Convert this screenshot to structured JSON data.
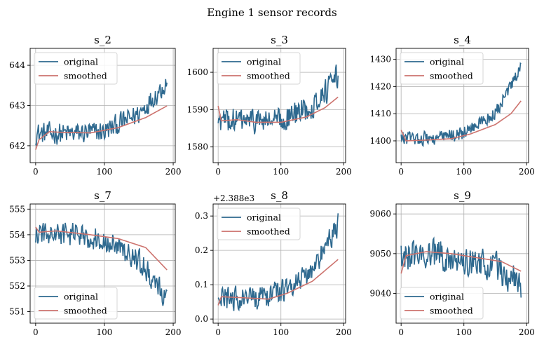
{
  "figure": {
    "title": "Engine 1 sensor records"
  },
  "colors": {
    "original": "#2e698f",
    "smoothed": "#cd736e",
    "grid": "#b0b0b0",
    "axes": "#000000"
  },
  "chart_data": [
    {
      "type": "line",
      "title": "s_2",
      "xlim": [
        -8,
        203
      ],
      "ylim": [
        641.58,
        644.42
      ],
      "xticks": [
        0,
        100,
        200
      ],
      "xtick_labels": [
        "0",
        "100",
        "200"
      ],
      "yticks": [
        642,
        643,
        644
      ],
      "ytick_labels": [
        "642",
        "643",
        "644"
      ],
      "offset_text": "",
      "legend": {
        "loc": "upper-left",
        "entries": [
          "original",
          "smoothed"
        ]
      },
      "n": 192,
      "original_trend": [
        [
          0,
          642.3
        ],
        [
          50,
          642.3
        ],
        [
          100,
          642.35
        ],
        [
          150,
          642.8
        ],
        [
          192,
          643.6
        ]
      ],
      "original_noise": 0.32,
      "smoothed": [
        [
          0,
          641.9
        ],
        [
          5,
          642.15
        ],
        [
          20,
          642.35
        ],
        [
          40,
          642.33
        ],
        [
          80,
          642.32
        ],
        [
          120,
          642.45
        ],
        [
          160,
          642.7
        ],
        [
          192,
          643.0
        ]
      ]
    },
    {
      "type": "line",
      "title": "s_3",
      "xlim": [
        -8,
        203
      ],
      "ylim": [
        1575.8,
        1606.4
      ],
      "xticks": [
        0,
        100,
        200
      ],
      "xtick_labels": [
        "0",
        "100",
        "200"
      ],
      "yticks": [
        1580,
        1590,
        1600
      ],
      "ytick_labels": [
        "1580",
        "1590",
        "1600"
      ],
      "offset_text": "",
      "legend": {
        "loc": "upper-left",
        "entries": [
          "original",
          "smoothed"
        ]
      },
      "n": 192,
      "original_trend": [
        [
          0,
          1587
        ],
        [
          60,
          1587
        ],
        [
          100,
          1587
        ],
        [
          150,
          1591
        ],
        [
          192,
          1599
        ]
      ],
      "original_noise": 4.0,
      "smoothed": [
        [
          0,
          1591
        ],
        [
          5,
          1587
        ],
        [
          30,
          1587.3
        ],
        [
          60,
          1586.6
        ],
        [
          100,
          1586.6
        ],
        [
          140,
          1588
        ],
        [
          170,
          1590.5
        ],
        [
          192,
          1593.5
        ]
      ]
    },
    {
      "type": "line",
      "title": "s_4",
      "xlim": [
        -8,
        203
      ],
      "ylim": [
        1392,
        1434
      ],
      "xticks": [
        0,
        100,
        200
      ],
      "xtick_labels": [
        "0",
        "100",
        "200"
      ],
      "yticks": [
        1400,
        1410,
        1420,
        1430
      ],
      "ytick_labels": [
        "1400",
        "1410",
        "1420",
        "1430"
      ],
      "offset_text": "",
      "legend": {
        "loc": "upper-left",
        "entries": [
          "original",
          "smoothed"
        ]
      },
      "n": 192,
      "original_trend": [
        [
          0,
          1401
        ],
        [
          60,
          1401
        ],
        [
          100,
          1403
        ],
        [
          150,
          1410
        ],
        [
          192,
          1427
        ]
      ],
      "original_noise": 3.0,
      "smoothed": [
        [
          0,
          1404
        ],
        [
          8,
          1400
        ],
        [
          40,
          1400.3
        ],
        [
          80,
          1400.8
        ],
        [
          110,
          1402.5
        ],
        [
          150,
          1406
        ],
        [
          175,
          1410
        ],
        [
          192,
          1415
        ]
      ]
    },
    {
      "type": "line",
      "title": "s_7",
      "xlim": [
        -8,
        203
      ],
      "ylim": [
        550.55,
        555.2
      ],
      "xticks": [
        0,
        100,
        200
      ],
      "xtick_labels": [
        "0",
        "100",
        "200"
      ],
      "yticks": [
        551,
        552,
        553,
        554,
        555
      ],
      "ytick_labels": [
        "551",
        "552",
        "553",
        "554",
        "555"
      ],
      "offset_text": "",
      "legend": {
        "loc": "lower-left",
        "entries": [
          "original",
          "smoothed"
        ]
      },
      "n": 192,
      "original_trend": [
        [
          0,
          554.0
        ],
        [
          60,
          554.0
        ],
        [
          100,
          553.8
        ],
        [
          150,
          553.0
        ],
        [
          192,
          551.4
        ]
      ],
      "original_noise": 0.55,
      "smoothed": [
        [
          0,
          554.3
        ],
        [
          5,
          554.1
        ],
        [
          30,
          554.15
        ],
        [
          80,
          554.0
        ],
        [
          120,
          553.85
        ],
        [
          160,
          553.5
        ],
        [
          192,
          552.6
        ]
      ]
    },
    {
      "type": "line",
      "title": "s_8",
      "xlim": [
        -8,
        203
      ],
      "ylim": [
        -0.012,
        0.335
      ],
      "xticks": [
        0,
        100,
        200
      ],
      "xtick_labels": [
        "0",
        "100",
        "200"
      ],
      "yticks": [
        0.0,
        0.1,
        0.2,
        0.3
      ],
      "ytick_labels": [
        "0.0",
        "0.1",
        "0.2",
        "0.3"
      ],
      "offset_text": "+2.388e3",
      "legend": {
        "loc": "upper-left",
        "entries": [
          "original",
          "smoothed"
        ]
      },
      "n": 192,
      "original_trend": [
        [
          0,
          0.06
        ],
        [
          60,
          0.06
        ],
        [
          100,
          0.08
        ],
        [
          150,
          0.14
        ],
        [
          192,
          0.28
        ]
      ],
      "original_noise": 0.04,
      "smoothed": [
        [
          0,
          0.04
        ],
        [
          5,
          0.065
        ],
        [
          40,
          0.062
        ],
        [
          80,
          0.058
        ],
        [
          110,
          0.075
        ],
        [
          150,
          0.11
        ],
        [
          192,
          0.175
        ]
      ]
    },
    {
      "type": "line",
      "title": "s_9",
      "xlim": [
        -8,
        203
      ],
      "ylim": [
        9032.5,
        9062.5
      ],
      "xticks": [
        0,
        100,
        200
      ],
      "xtick_labels": [
        "0",
        "100",
        "200"
      ],
      "yticks": [
        9040,
        9050,
        9060
      ],
      "ytick_labels": [
        "9040",
        "9050",
        "9060"
      ],
      "offset_text": "",
      "legend": {
        "loc": "lower-left",
        "entries": [
          "original",
          "smoothed"
        ]
      },
      "n": 192,
      "original_trend": [
        [
          0,
          9049
        ],
        [
          40,
          9050
        ],
        [
          100,
          9048.5
        ],
        [
          150,
          9047
        ],
        [
          192,
          9042
        ]
      ],
      "original_noise": 4.5,
      "smoothed": [
        [
          0,
          9045
        ],
        [
          8,
          9049.5
        ],
        [
          40,
          9050.5
        ],
        [
          80,
          9050
        ],
        [
          120,
          9049
        ],
        [
          160,
          9048
        ],
        [
          192,
          9045.5
        ]
      ]
    }
  ]
}
